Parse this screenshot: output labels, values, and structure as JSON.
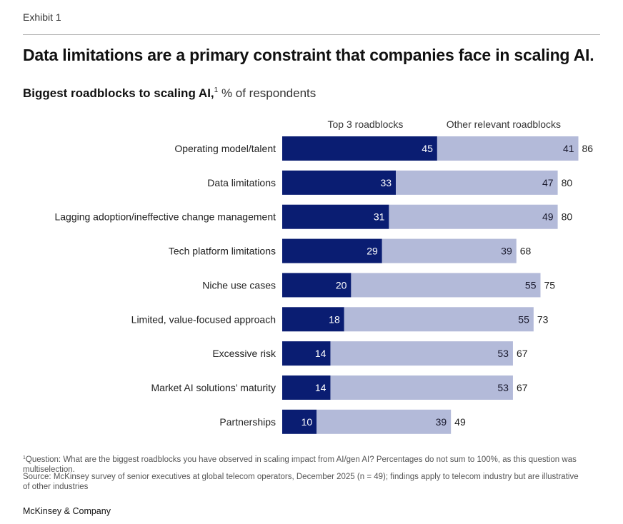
{
  "exhibit": "Exhibit 1",
  "headline": "Data limitations are a primary constraint that companies face in scaling AI.",
  "subtitle": {
    "bold": "Biggest roadblocks to scaling AI,",
    "sup": "1",
    "unit": " % of respondents"
  },
  "colors": {
    "top3": "#0a1d72",
    "other": "#b3bad9"
  },
  "chart_data": {
    "type": "bar",
    "orientation": "horizontal",
    "stacked": true,
    "categories": [
      "Operating model/talent",
      "Data limitations",
      "Lagging adoption/ineffective change management",
      "Tech platform limitations",
      "Niche use cases",
      "Limited, value-focused approach",
      "Excessive risk",
      "Market AI solutions’ maturity",
      "Partnerships"
    ],
    "series": [
      {
        "name": "Top 3 roadblocks",
        "values": [
          45,
          33,
          31,
          29,
          20,
          18,
          14,
          14,
          10
        ]
      },
      {
        "name": "Other relevant roadblocks",
        "values": [
          41,
          47,
          49,
          39,
          55,
          55,
          53,
          53,
          39
        ]
      }
    ],
    "totals": [
      86,
      80,
      80,
      68,
      75,
      73,
      67,
      67,
      49
    ],
    "xlim": [
      0,
      100
    ],
    "grid": false,
    "legend": "top"
  },
  "footnotes": {
    "sup": "1",
    "question": "Question: What are the biggest roadblocks you have observed in scaling impact from AI/gen AI? Percentages do not sum to 100%, as this question was multiselection.",
    "source": "Source: McKinsey survey of senior executives at global telecom operators, December 2025 (n = 49); findings apply to telecom industry but are illustrative of other industries"
  },
  "brand": "McKinsey & Company"
}
